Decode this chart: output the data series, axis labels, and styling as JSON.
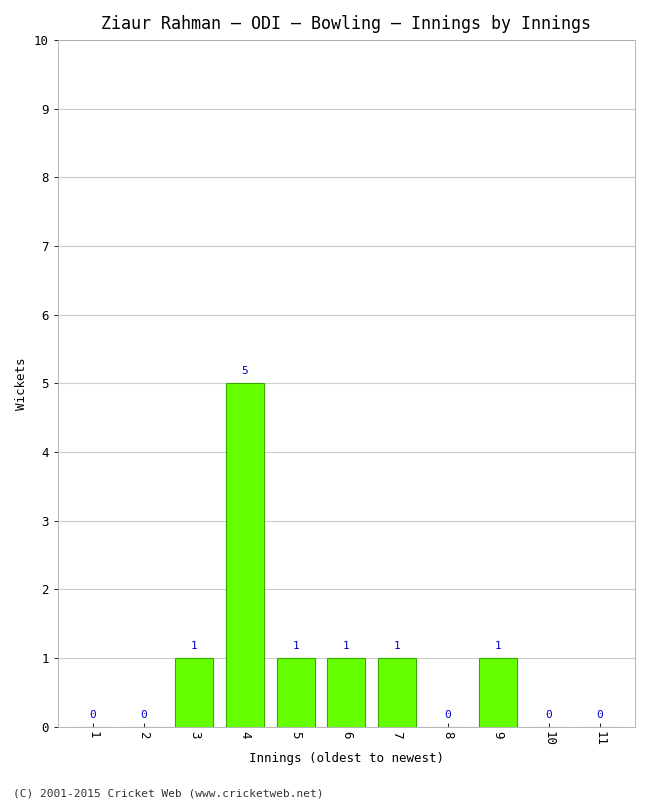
{
  "title": "Ziaur Rahman – ODI – Bowling – Innings by Innings",
  "xlabel": "Innings (oldest to newest)",
  "ylabel": "Wickets",
  "background_color": "#ffffff",
  "plot_background_color": "#ffffff",
  "bar_color": "#66ff00",
  "bar_edge_color": "#33aa00",
  "label_color": "#0000cc",
  "innings": [
    1,
    2,
    3,
    4,
    5,
    6,
    7,
    8,
    9,
    10,
    11
  ],
  "wickets": [
    0,
    0,
    1,
    5,
    1,
    1,
    1,
    0,
    1,
    0,
    0
  ],
  "ylim": [
    0,
    10
  ],
  "yticks": [
    0,
    1,
    2,
    3,
    4,
    5,
    6,
    7,
    8,
    9,
    10
  ],
  "xtick_labels": [
    "1",
    "2",
    "3",
    "4",
    "5",
    "6",
    "7",
    "8",
    "9",
    "10",
    "11"
  ],
  "footer": "(C) 2001-2015 Cricket Web (www.cricketweb.net)",
  "title_fontsize": 12,
  "axis_label_fontsize": 9,
  "tick_fontsize": 9,
  "annotation_fontsize": 8,
  "footer_fontsize": 8
}
